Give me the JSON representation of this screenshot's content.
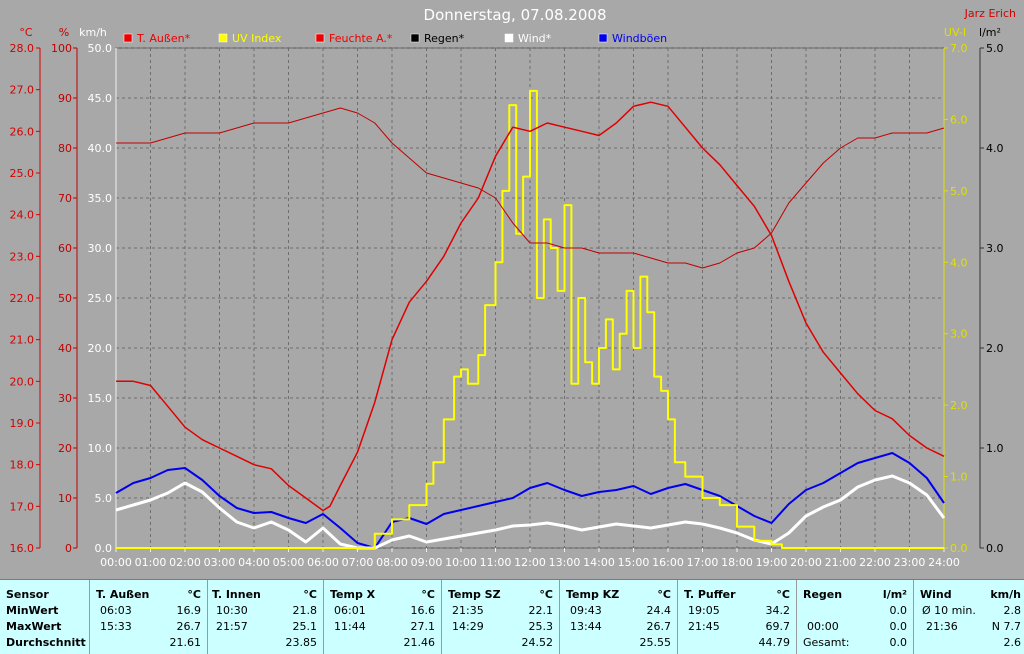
{
  "header": {
    "title": "Donnerstag, 07.08.2008",
    "author": "Jarz Erich"
  },
  "colors": {
    "background": "#a8a8a8",
    "temp_axis": "#d40000",
    "humidity_axis": "#c00000",
    "wind_axis": "#ffffff",
    "uv_axis": "#e0e000",
    "rain_axis": "#000000",
    "temp_line": "#e00000",
    "humidity_line": "#c00000",
    "uv_line": "#ffff00",
    "wind_line": "#ffffff",
    "gust_line": "#0000ee",
    "stats_bg": "#ccffff"
  },
  "chart_data": {
    "type": "line",
    "title": "Donnerstag, 07.08.2008",
    "x_ticks": [
      "00:00",
      "01:00",
      "02:00",
      "03:00",
      "04:00",
      "05:00",
      "06:00",
      "07:00",
      "08:00",
      "09:00",
      "10:00",
      "11:00",
      "12:00",
      "13:00",
      "14:00",
      "15:00",
      "16:00",
      "17:00",
      "18:00",
      "19:00",
      "20:00",
      "21:00",
      "22:00",
      "23:00",
      "24:00"
    ],
    "axes": {
      "temp": {
        "unit": "°C",
        "min": 16,
        "max": 28,
        "ticks": [
          "16.0",
          "17.0",
          "18.0",
          "19.0",
          "20.0",
          "21.0",
          "22.0",
          "23.0",
          "24.0",
          "25.0",
          "26.0",
          "27.0",
          "28.0"
        ]
      },
      "humidity": {
        "unit": "%",
        "min": 0,
        "max": 100,
        "ticks": [
          "0",
          "10",
          "20",
          "30",
          "40",
          "50",
          "60",
          "70",
          "80",
          "90",
          "100"
        ]
      },
      "wind": {
        "unit": "km/h",
        "min": 0,
        "max": 50,
        "ticks": [
          "0.0",
          "5.0",
          "10.0",
          "15.0",
          "20.0",
          "25.0",
          "30.0",
          "35.0",
          "40.0",
          "45.0",
          "50.0"
        ]
      },
      "uv": {
        "unit": "UV-I",
        "min": 0,
        "max": 7,
        "ticks": [
          "0.0",
          "1.0",
          "2.0",
          "3.0",
          "4.0",
          "5.0",
          "6.0",
          "7.0"
        ]
      },
      "rain": {
        "unit": "l/m²",
        "min": 0,
        "max": 5,
        "ticks": [
          "0.0",
          "1.0",
          "2.0",
          "3.0",
          "4.0",
          "5.0"
        ]
      }
    },
    "grid": true,
    "legend_position": "top",
    "legend": [
      {
        "label": "T. Außen*",
        "color": "#ee0000"
      },
      {
        "label": "UV Index",
        "color": "#ffff00"
      },
      {
        "label": "Feuchte A.*",
        "color": "#ee0000"
      },
      {
        "label": "Regen*",
        "color": "#000000"
      },
      {
        "label": "Wind*",
        "color": "#ffffff"
      },
      {
        "label": "Windböen",
        "color": "#0000ee"
      }
    ],
    "series": [
      {
        "name": "T. Außen*",
        "axis": "temp",
        "x": [
          0,
          0.5,
          1,
          1.5,
          2,
          2.5,
          3,
          3.5,
          4,
          4.5,
          5,
          5.5,
          6,
          6.2,
          6.5,
          7,
          7.5,
          8,
          8.5,
          9,
          9.5,
          10,
          10.5,
          11,
          11.5,
          12,
          12.5,
          13,
          13.5,
          14,
          14.5,
          15,
          15.5,
          16,
          16.5,
          17,
          17.5,
          18,
          18.5,
          19,
          19.5,
          20,
          20.5,
          21,
          21.5,
          22,
          22.5,
          23,
          23.5,
          24
        ],
        "values": [
          20.0,
          20.0,
          19.9,
          19.4,
          18.9,
          18.6,
          18.4,
          18.2,
          18.0,
          17.9,
          17.5,
          17.2,
          16.9,
          17.0,
          17.5,
          18.3,
          19.5,
          21.0,
          21.9,
          22.4,
          23.0,
          23.8,
          24.4,
          25.4,
          26.1,
          26.0,
          26.2,
          26.1,
          26.0,
          25.9,
          26.2,
          26.6,
          26.7,
          26.6,
          26.1,
          25.6,
          25.2,
          24.7,
          24.2,
          23.5,
          22.4,
          21.4,
          20.7,
          20.2,
          19.7,
          19.3,
          19.1,
          18.7,
          18.4,
          18.2
        ]
      },
      {
        "name": "Feuchte A.*",
        "axis": "humidity",
        "x": [
          0,
          0.5,
          1,
          1.5,
          2,
          2.5,
          3,
          3.5,
          4,
          4.5,
          5,
          5.5,
          6,
          6.5,
          7,
          7.5,
          8,
          8.5,
          9,
          9.5,
          10,
          10.5,
          11,
          11.5,
          12,
          12.5,
          13,
          13.5,
          14,
          14.5,
          15,
          15.5,
          16,
          16.5,
          17,
          17.5,
          18,
          18.5,
          19,
          19.5,
          20,
          20.5,
          21,
          21.5,
          22,
          22.5,
          23,
          23.5,
          24
        ],
        "values": [
          81,
          81,
          81,
          82,
          83,
          83,
          83,
          84,
          85,
          85,
          85,
          86,
          87,
          88,
          87,
          85,
          81,
          78,
          75,
          74,
          73,
          72,
          70,
          65,
          61,
          61,
          60,
          60,
          59,
          59,
          59,
          58,
          57,
          57,
          56,
          57,
          59,
          60,
          63,
          69,
          73,
          77,
          80,
          82,
          82,
          83,
          83,
          83,
          84
        ]
      },
      {
        "name": "UV Index",
        "axis": "uv",
        "x": [
          0,
          7.2,
          7.5,
          8,
          8.5,
          9,
          9.2,
          9.5,
          9.8,
          10,
          10.2,
          10.5,
          10.7,
          11,
          11.2,
          11.4,
          11.6,
          11.8,
          12,
          12.2,
          12.4,
          12.6,
          12.8,
          13,
          13.2,
          13.4,
          13.6,
          13.8,
          14,
          14.2,
          14.4,
          14.6,
          14.8,
          15,
          15.2,
          15.4,
          15.6,
          15.8,
          16,
          16.2,
          16.5,
          17,
          17.5,
          18,
          18.5,
          19,
          19.3,
          24
        ],
        "values": [
          0,
          0,
          0.2,
          0.4,
          0.6,
          0.9,
          1.2,
          1.8,
          2.4,
          2.5,
          2.3,
          2.7,
          3.4,
          4.0,
          5.0,
          6.2,
          4.4,
          5.2,
          6.4,
          3.5,
          4.6,
          4.2,
          3.6,
          4.8,
          2.3,
          3.5,
          2.6,
          2.3,
          2.8,
          3.2,
          2.5,
          3.0,
          3.6,
          2.8,
          3.8,
          3.3,
          2.4,
          2.2,
          1.8,
          1.2,
          1.0,
          0.7,
          0.6,
          0.3,
          0.1,
          0.05,
          0,
          0
        ]
      },
      {
        "name": "Wind*",
        "axis": "wind",
        "x": [
          0,
          0.5,
          1,
          1.5,
          2,
          2.5,
          3,
          3.5,
          4,
          4.5,
          5,
          5.5,
          6,
          6.5,
          7,
          7.5,
          8,
          8.5,
          9,
          9.5,
          10,
          10.5,
          11,
          11.5,
          12,
          12.5,
          13,
          13.5,
          14,
          14.5,
          15,
          15.5,
          16,
          16.5,
          17,
          17.5,
          18,
          18.5,
          19,
          19.5,
          20,
          20.5,
          21,
          21.5,
          22,
          22.5,
          23,
          23.5,
          24
        ],
        "values": [
          3.8,
          4.3,
          4.8,
          5.5,
          6.5,
          5.6,
          4.0,
          2.6,
          2.0,
          2.6,
          1.8,
          0.6,
          2.0,
          0.4,
          0,
          0,
          0.8,
          1.2,
          0.6,
          0.9,
          1.2,
          1.5,
          1.8,
          2.2,
          2.3,
          2.5,
          2.2,
          1.8,
          2.1,
          2.4,
          2.2,
          2.0,
          2.3,
          2.6,
          2.4,
          2.0,
          1.5,
          0.8,
          0.4,
          1.5,
          3.2,
          4.1,
          4.8,
          6.1,
          6.8,
          7.2,
          6.5,
          5.3,
          3.0
        ]
      },
      {
        "name": "Windböen",
        "axis": "wind",
        "x": [
          0,
          0.5,
          1,
          1.5,
          2,
          2.5,
          3,
          3.5,
          4,
          4.5,
          5,
          5.5,
          6,
          6.5,
          7,
          7.5,
          8,
          8.5,
          9,
          9.5,
          10,
          10.5,
          11,
          11.5,
          12,
          12.5,
          13,
          13.5,
          14,
          14.5,
          15,
          15.5,
          16,
          16.5,
          17,
          17.5,
          18,
          18.5,
          19,
          19.5,
          20,
          20.5,
          21,
          21.5,
          22,
          22.5,
          23,
          23.5,
          24
        ],
        "values": [
          5.5,
          6.5,
          7.0,
          7.8,
          8.0,
          6.8,
          5.2,
          4.0,
          3.5,
          3.6,
          3.0,
          2.5,
          3.4,
          2.0,
          0.5,
          0,
          2.6,
          3.0,
          2.4,
          3.4,
          3.8,
          4.2,
          4.6,
          5.0,
          6.0,
          6.5,
          5.8,
          5.2,
          5.6,
          5.8,
          6.2,
          5.4,
          6.0,
          6.4,
          5.8,
          5.2,
          4.2,
          3.2,
          2.5,
          4.4,
          5.8,
          6.5,
          7.5,
          8.5,
          9.0,
          9.5,
          8.5,
          7.0,
          4.5
        ]
      }
    ]
  },
  "stats": {
    "sensor": {
      "header": "Sensor",
      "rows": [
        "MinWert",
        "MaxWert",
        "Durchschnitt"
      ]
    },
    "columns": [
      {
        "name": "T. Außen",
        "unit": "°C",
        "min_time": "06:03",
        "min_val": "16.9",
        "max_time": "15:33",
        "max_val": "26.7",
        "avg": "21.61"
      },
      {
        "name": "T. Innen",
        "unit": "°C",
        "min_time": "10:30",
        "min_val": "21.8",
        "max_time": "21:57",
        "max_val": "25.1",
        "avg": "23.85"
      },
      {
        "name": "Temp X",
        "unit": "°C",
        "min_time": "06:01",
        "min_val": "16.6",
        "max_time": "11:44",
        "max_val": "27.1",
        "avg": "21.46"
      },
      {
        "name": "Temp SZ",
        "unit": "°C",
        "min_time": "21:35",
        "min_val": "22.1",
        "max_time": "14:29",
        "max_val": "25.3",
        "avg": "24.52"
      },
      {
        "name": "Temp KZ",
        "unit": "°C",
        "min_time": "09:43",
        "min_val": "24.4",
        "max_time": "13:44",
        "max_val": "26.7",
        "avg": "25.55"
      },
      {
        "name": "T. Puffer",
        "unit": "°C",
        "min_time": "19:05",
        "min_val": "34.2",
        "max_time": "21:45",
        "max_val": "69.7",
        "avg": "44.79"
      }
    ],
    "regen": {
      "name": "Regen",
      "unit": "l/m²",
      "r1_time": "",
      "r1_val": "0.0",
      "r2_time": "00:00",
      "r2_val": "0.0",
      "r3_label": "Gesamt:",
      "r3_val": "0.0"
    },
    "wind": {
      "name": "Wind",
      "unit": "km/h",
      "r1_label": "Ø 10 min.",
      "r1_val": "2.8",
      "r2_time": "21:36",
      "r2_val": "N 7.7",
      "r3_val": "2.6"
    }
  }
}
